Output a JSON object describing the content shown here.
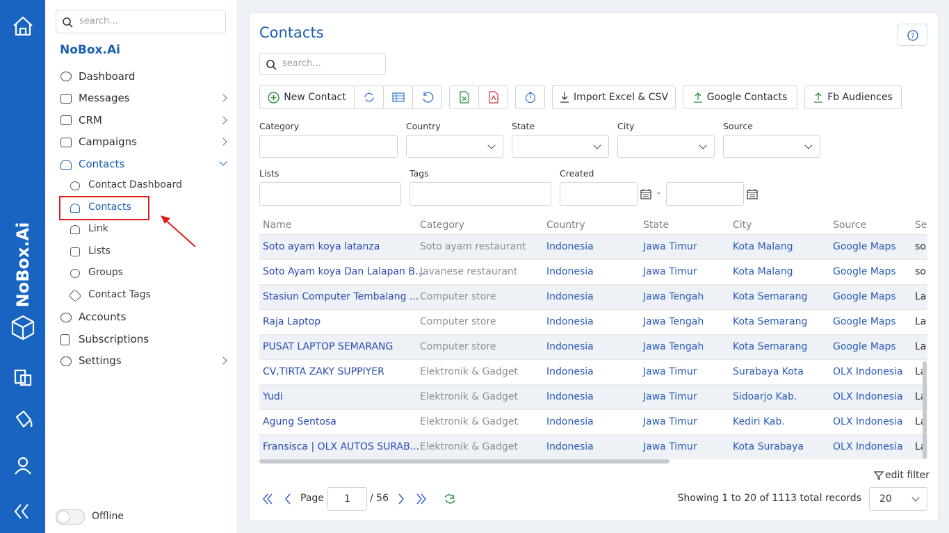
{
  "rail": {
    "brand": "NoBox.Ai"
  },
  "sidebar": {
    "search": "search...",
    "brand": "NoBox.Ai",
    "menu": [
      "Dashboard",
      "Messages",
      "CRM",
      "Campaigns",
      "Contacts",
      "Accounts",
      "Subscriptions",
      "Settings"
    ],
    "submenu": [
      "Contact Dashboard",
      "Contacts",
      "Link",
      "Lists",
      "Groups",
      "Contact Tags"
    ],
    "status": "Offline"
  },
  "main": {
    "title": "Contacts",
    "search": "search...",
    "toolbar": [
      "New Contact",
      "Import Excel & CSV",
      "Google Contacts",
      "Fb Audiences"
    ],
    "filters": [
      "Category",
      "Country",
      "State",
      "City",
      "Source",
      "Lists",
      "Tags",
      "Created"
    ],
    "date_separator": "-",
    "table": {
      "headers": [
        "Name",
        "Category",
        "Country",
        "State",
        "City",
        "Source",
        "Se"
      ],
      "rows": [
        [
          "Soto ayam koya latanza",
          "Soto ayam restaurant",
          "Indonesia",
          "Jawa Timur",
          "Kota Malang",
          "Google Maps",
          "so"
        ],
        [
          "Soto Ayam koya Dan Lalapan B...",
          "Javanese restaurant",
          "Indonesia",
          "Jawa Timur",
          "Kota Malang",
          "Google Maps",
          "so"
        ],
        [
          "Stasiun Computer Tembalang ...",
          "Computer store",
          "Indonesia",
          "Jawa Tengah",
          "Kota Semarang",
          "Google Maps",
          "La"
        ],
        [
          "Raja Laptop",
          "Computer store",
          "Indonesia",
          "Jawa Tengah",
          "Kota Semarang",
          "Google Maps",
          "La"
        ],
        [
          "PUSAT LAPTOP SEMARANG",
          "Computer store",
          "Indonesia",
          "Jawa Tengah",
          "Kota Semarang",
          "Google Maps",
          "La"
        ],
        [
          "CV,TIRTA ZAKY SUPPIYER",
          "Elektronik & Gadget",
          "Indonesia",
          "Jawa Timur",
          "Surabaya Kota",
          "OLX Indonesia",
          "La"
        ],
        [
          "Yudi",
          "Elektronik & Gadget",
          "Indonesia",
          "Jawa Timur",
          "Sidoarjo Kab.",
          "OLX Indonesia",
          "La"
        ],
        [
          "Agung Sentosa",
          "Elektronik & Gadget",
          "Indonesia",
          "Jawa Timur",
          "Kediri Kab.",
          "OLX Indonesia",
          "La"
        ],
        [
          "Fransisca | OLX AUTOS SURAB...",
          "Elektronik & Gadget",
          "Indonesia",
          "Jawa Timur",
          "Kota Surabaya",
          "OLX Indonesia",
          "La"
        ]
      ]
    },
    "edit_filter": "edit filter",
    "pagination": {
      "page_label": "Page",
      "page": 1,
      "total_pages": "/ 56",
      "summary": "Showing 1 to 20 of 1113 total records",
      "page_size": 20
    }
  }
}
